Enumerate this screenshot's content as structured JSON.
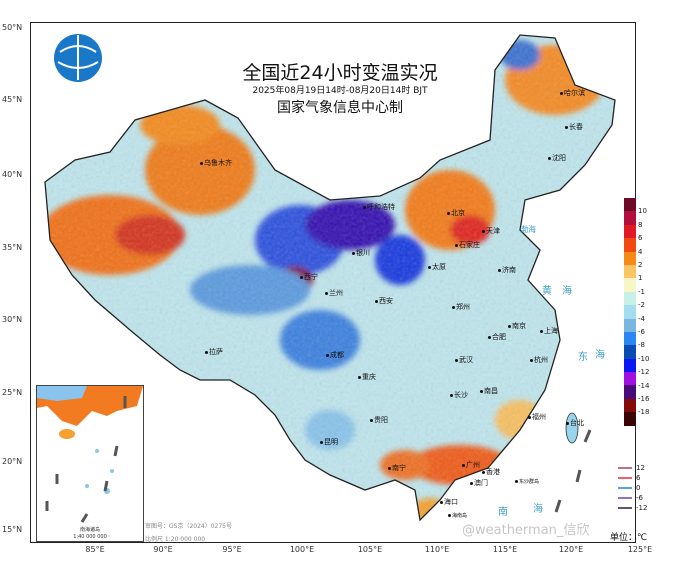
{
  "header": {
    "title": "全国近24小时变温实况",
    "subtitle": "2025年08月19日14时-08月20日14时  BJT",
    "producer": "国家气象信息中心制"
  },
  "axes": {
    "lat_labels": [
      "50°N",
      "45°N",
      "40°N",
      "35°N",
      "30°N",
      "25°N",
      "20°N",
      "15°N"
    ],
    "lon_labels": [
      "85°E",
      "90°E",
      "95°E",
      "100°E",
      "105°E",
      "110°E",
      "115°E",
      "120°E",
      "125°E"
    ]
  },
  "cities": [
    {
      "name": "乌鲁木齐"
    },
    {
      "name": "哈尔滨"
    },
    {
      "name": "长春"
    },
    {
      "name": "沈阳"
    },
    {
      "name": "呼和浩特"
    },
    {
      "name": "北京"
    },
    {
      "name": "天津"
    },
    {
      "name": "石家庄"
    },
    {
      "name": "太原"
    },
    {
      "name": "济南"
    },
    {
      "name": "银川"
    },
    {
      "name": "西宁"
    },
    {
      "name": "兰州"
    },
    {
      "name": "西安"
    },
    {
      "name": "郑州"
    },
    {
      "name": "合肥"
    },
    {
      "name": "南京"
    },
    {
      "name": "上海"
    },
    {
      "name": "武汉"
    },
    {
      "name": "杭州"
    },
    {
      "name": "成都"
    },
    {
      "name": "重庆"
    },
    {
      "name": "长沙"
    },
    {
      "name": "南昌"
    },
    {
      "name": "福州"
    },
    {
      "name": "台北"
    },
    {
      "name": "贵阳"
    },
    {
      "name": "昆明"
    },
    {
      "name": "南宁"
    },
    {
      "name": "广州"
    },
    {
      "name": "香港"
    },
    {
      "name": "澳门"
    },
    {
      "name": "海口"
    },
    {
      "name": "拉萨"
    }
  ],
  "seas": [
    {
      "name": "渤海"
    },
    {
      "name": "黄"
    },
    {
      "name": "海"
    },
    {
      "name": "东"
    },
    {
      "name": "海"
    },
    {
      "name": "南"
    },
    {
      "name": "海"
    }
  ],
  "islands": {
    "dongsha": "东沙群岛",
    "hainan": "海南岛"
  },
  "legend": {
    "unit": "单位：℃",
    "colors": [
      "#6e0a28",
      "#b2103c",
      "#e21a26",
      "#f04a12",
      "#f78a16",
      "#fcc462",
      "#f6f6c6",
      "#c8f0e4",
      "#a4dcf0",
      "#7ab6e0",
      "#2a86f0",
      "#0a4cb4",
      "#0818f4",
      "#a010e0",
      "#4a0a78",
      "#820a0a",
      "#3a0404"
    ],
    "labels": [
      "10",
      "8",
      "6",
      "4",
      "2",
      "1",
      "-1",
      "-2",
      "-4",
      "-6",
      "-8",
      "-10",
      "-12",
      "-14",
      "-16",
      "-18"
    ],
    "contours": [
      {
        "label": "12",
        "color": "#c07080"
      },
      {
        "label": "6",
        "color": "#f06060"
      },
      {
        "label": "0",
        "color": "#5aa0e0"
      },
      {
        "label": "-6",
        "color": "#9070c0"
      },
      {
        "label": "-12",
        "color": "#705060"
      }
    ]
  },
  "footer": {
    "review_no": "审图号：GS京（2024）0275号",
    "scale": "比例尺  1:20 000 000",
    "watermark": "@weatherman_信欣"
  },
  "inset": {
    "title": "南海诸岛",
    "scale": "1:40 000 000"
  }
}
